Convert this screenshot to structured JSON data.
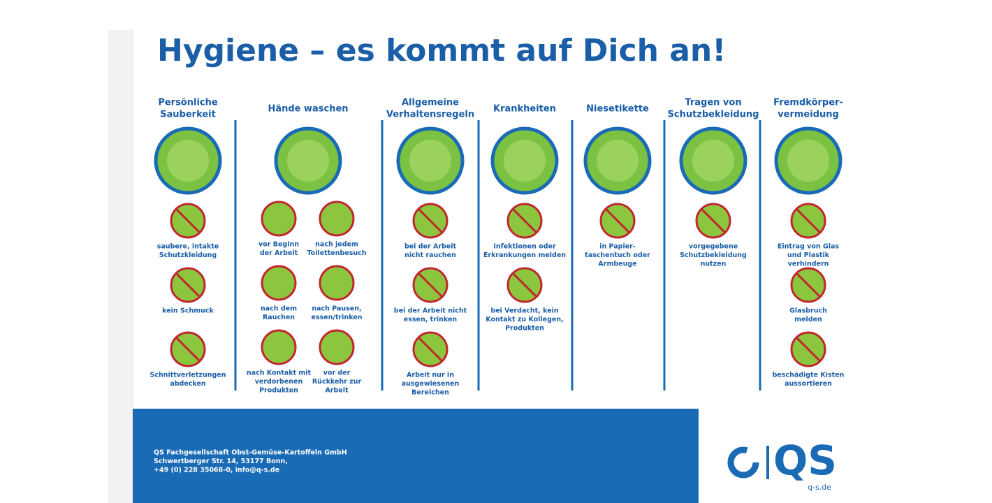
{
  "title": "Hygiene – es kommt auf Dich an!",
  "columns": [
    {
      "heading": [
        "Persönliche",
        "Sauberkeit"
      ],
      "items": [
        {
          "label": [
            "saubere, intakte",
            "Schutzkleidung"
          ]
        },
        {
          "label": [
            "kein Schmuck"
          ]
        },
        {
          "label": [
            "Schnittverletzungen",
            "abdecken"
          ]
        }
      ]
    },
    {
      "heading": [
        "Hände waschen"
      ],
      "items": [
        {
          "label": [
            "vor Beginn",
            "der Arbeit"
          ]
        },
        {
          "label": [
            "nach jedem",
            "Toilettenbesuch"
          ]
        },
        {
          "label": [
            "nach dem",
            "Rauchen"
          ]
        },
        {
          "label": [
            "nach Pausen,",
            "essen/trinken"
          ]
        },
        {
          "label": [
            "nach Kontakt mit",
            "verdorbenen",
            "Produkten"
          ]
        },
        {
          "label": [
            "vor der",
            "Rückkehr zur",
            "Arbeit"
          ]
        }
      ]
    },
    {
      "heading": [
        "Allgemeine",
        "Verhaltensregeln"
      ],
      "items": [
        {
          "label": [
            "bei der Arbeit",
            "nicht rauchen"
          ]
        },
        {
          "label": [
            "bei der Arbeit nicht",
            "essen, trinken"
          ]
        },
        {
          "label": [
            "Arbeit nur in",
            "ausgewiesenen",
            "Bereichen"
          ]
        }
      ]
    },
    {
      "heading": [
        "Krankheiten"
      ],
      "items": [
        {
          "label": [
            "Infektionen oder",
            "Erkrankungen melden"
          ]
        },
        {
          "label": [
            "bei Verdacht, kein",
            "Kontakt zu Kollegen,",
            "Produkten"
          ]
        }
      ]
    },
    {
      "heading": [
        "Niesetikette"
      ],
      "items": [
        {
          "label": [
            "in Papier-",
            "taschentuch oder",
            "Armbeuge"
          ]
        }
      ]
    },
    {
      "heading": [
        "Tragen von",
        "Schutzbekleidung"
      ],
      "items": [
        {
          "label": [
            "vorgegebene",
            "Schutzbekleidung",
            "nutzen"
          ]
        }
      ]
    },
    {
      "heading": [
        "Fremdkörper-",
        "vermeidung"
      ],
      "items": [
        {
          "label": [
            "Eintrag von Glas",
            "und Plastik",
            "verhindern"
          ]
        },
        {
          "label": [
            "Glasbruch",
            "melden"
          ]
        },
        {
          "label": [
            "beschädigte Kisten",
            "aussortieren"
          ]
        }
      ]
    }
  ],
  "footer": [
    "QS Fachgesellschaft Obst-Gemüse-Kartoffeln GmbH",
    "Schwertberger Str. 14, 53177 Bonn,",
    "+49 (0) 228 35068-0, info@q-s.de"
  ],
  "logo": {
    "mark": "QS",
    "url": "q-s.de"
  }
}
